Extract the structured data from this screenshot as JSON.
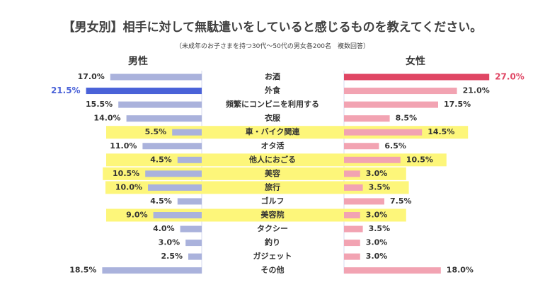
{
  "chart_data": {
    "type": "bar",
    "title": "【男女別】相手に対して無駄遣いをしていると感じるものを教えてください。",
    "subtitle": "（未成年のお子さまを持つ30代〜50代の男女各200名　複数回答）",
    "categories": [
      "お酒",
      "外食",
      "頻繁にコンビニを利用する",
      "衣服",
      "車・バイク関連",
      "オタ活",
      "他人におごる",
      "美容",
      "旅行",
      "ゴルフ",
      "美容院",
      "タクシー",
      "釣り",
      "ガジェット",
      "その他"
    ],
    "series": [
      {
        "name": "男性",
        "values": [
          17.0,
          21.5,
          15.5,
          14.0,
          5.5,
          11.0,
          4.5,
          10.5,
          10.0,
          4.5,
          9.0,
          4.0,
          3.0,
          2.5,
          18.5
        ]
      },
      {
        "name": "女性",
        "values": [
          27.0,
          21.0,
          17.5,
          8.5,
          14.5,
          6.5,
          10.5,
          3.0,
          3.5,
          7.5,
          3.0,
          3.5,
          3.0,
          3.0,
          18.0
        ]
      }
    ],
    "highlighted_categories": [
      "車・バイク関連",
      "他人におごる",
      "美容",
      "旅行",
      "美容院"
    ],
    "value_format": "%",
    "colors": {
      "male_bar": "#aab2dc",
      "male_max": "#4a62d8",
      "female_bar": "#f2a3b2",
      "female_max": "#e04664",
      "highlight": "#fdf67a",
      "divider": "#d7dbef"
    }
  }
}
